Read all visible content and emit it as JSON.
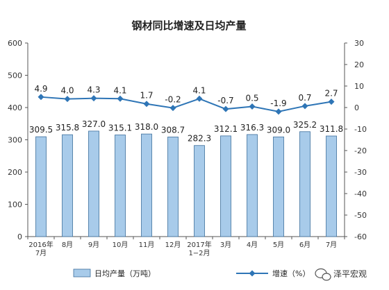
{
  "chart_data": {
    "type": "bar",
    "title": "钢材同比增速及日均产量",
    "categories": [
      "2016年\n7月",
      "8月",
      "9月",
      "10月",
      "11月",
      "12月",
      "2017年\n1−2月",
      "3月",
      "4月",
      "5月",
      "6月",
      "7月"
    ],
    "series": [
      {
        "name": "日均产量（万吨）",
        "type": "bar",
        "axis": "left",
        "values": [
          309.5,
          315.8,
          327.0,
          315.1,
          318.0,
          308.7,
          282.3,
          312.1,
          316.3,
          309.0,
          325.2,
          311.8
        ],
        "labels": [
          "309.5",
          "315.8",
          "327.0",
          "315.1",
          "318.0",
          "308.7",
          "282.3",
          "312.1",
          "316.3",
          "309.0",
          "325.2",
          "311.8"
        ]
      },
      {
        "name": "增速（%）",
        "type": "line",
        "axis": "right",
        "values": [
          4.9,
          4.0,
          4.3,
          4.1,
          1.7,
          -0.2,
          4.1,
          -0.7,
          0.5,
          -1.9,
          0.7,
          2.7
        ],
        "labels": [
          "4.9",
          "4.0",
          "4.3",
          "4.1",
          "1.7",
          "-0.2",
          "4.1",
          "-0.7",
          "0.5",
          "-1.9",
          "0.7",
          "2.7"
        ]
      }
    ],
    "ylim_left": [
      0,
      600
    ],
    "yticks_left": [
      "0",
      "100",
      "200",
      "300",
      "400",
      "500",
      "600"
    ],
    "ylim_right": [
      -60,
      30
    ],
    "yticks_right": [
      "-60",
      "-50",
      "-40",
      "-30",
      "-20",
      "-10",
      "0",
      "10",
      "20",
      "30"
    ],
    "grid": false,
    "legend_position": "bottom",
    "colors": {
      "bar_fill": "#a8cbea",
      "bar_stroke": "#3d6e9c",
      "line": "#2e75b6"
    }
  },
  "watermark": {
    "text": "泽平宏观"
  }
}
